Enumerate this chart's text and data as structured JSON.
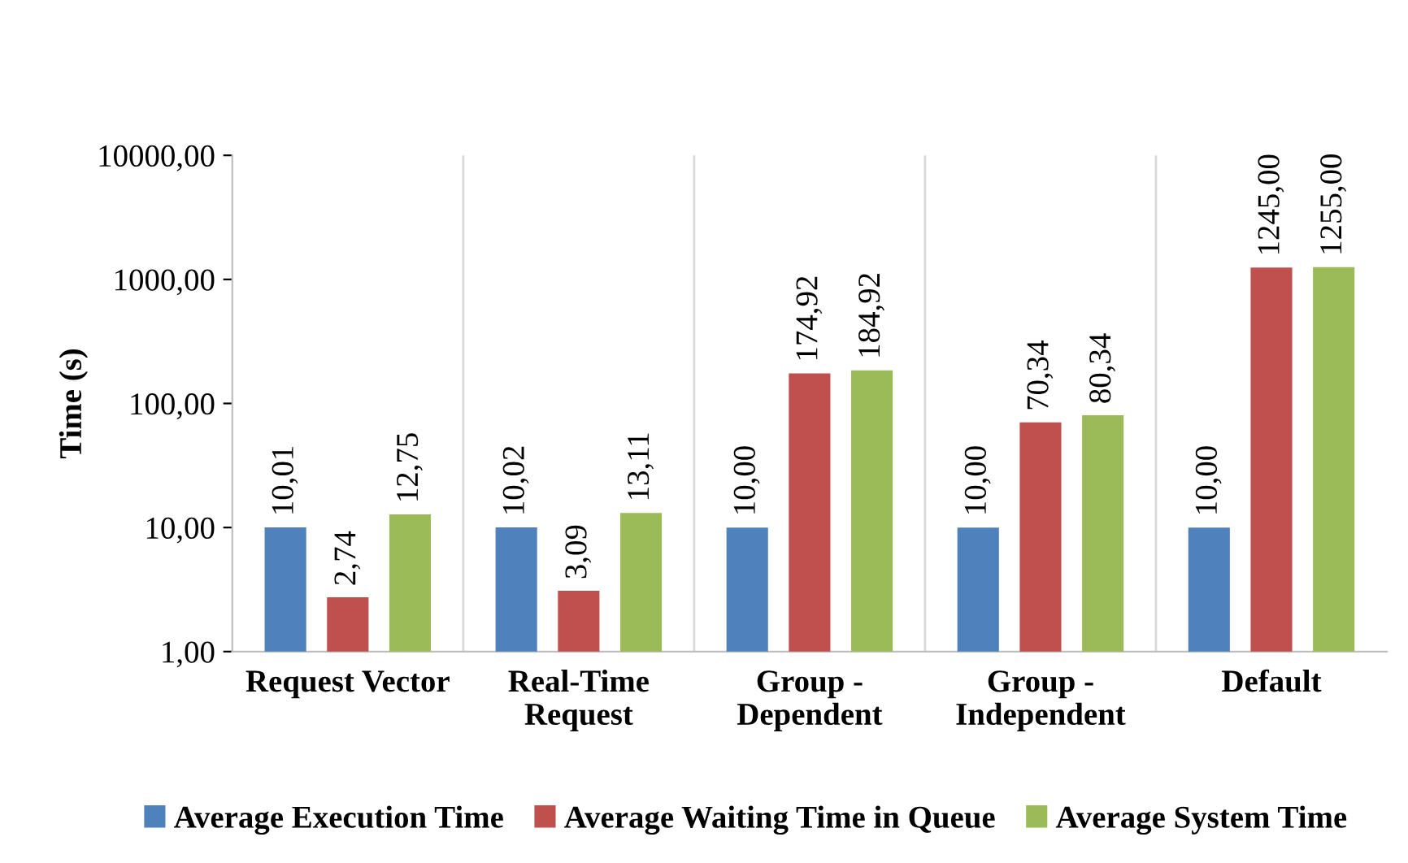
{
  "chart_data": {
    "type": "bar",
    "ylabel": "Time (s)",
    "categories": [
      "Request Vector",
      "Real-Time\nRequest",
      "Group -\nDependent",
      "Group -\nIndependent",
      "Default"
    ],
    "series": [
      {
        "name": "Average Execution Time",
        "color": "#4f81bd",
        "values": [
          10.01,
          10.02,
          10.0,
          10.0,
          10.0
        ],
        "value_labels": [
          "10,01",
          "10,02",
          "10,00",
          "10,00",
          "10,00"
        ]
      },
      {
        "name": "Average Waiting Time in Queue",
        "color": "#c0504d",
        "values": [
          2.74,
          3.09,
          174.92,
          70.34,
          1245.0
        ],
        "value_labels": [
          "2,74",
          "3,09",
          "174,92",
          "70,34",
          "1245,00"
        ]
      },
      {
        "name": "Average System Time",
        "color": "#9bbb59",
        "values": [
          12.75,
          13.11,
          184.92,
          80.34,
          1255.0
        ],
        "value_labels": [
          "12,75",
          "13,11",
          "184,92",
          "80,34",
          "1255,00"
        ]
      }
    ],
    "log": "y",
    "ylim": [
      1,
      10000
    ],
    "yticks": [
      {
        "value": 1,
        "label": "1,00"
      },
      {
        "value": 10,
        "label": "10,00"
      },
      {
        "value": 100,
        "label": "100,00"
      },
      {
        "value": 1000,
        "label": "1000,00"
      },
      {
        "value": 10000,
        "label": "10000,00"
      }
    ],
    "grid": "x",
    "legend": "bottom"
  }
}
